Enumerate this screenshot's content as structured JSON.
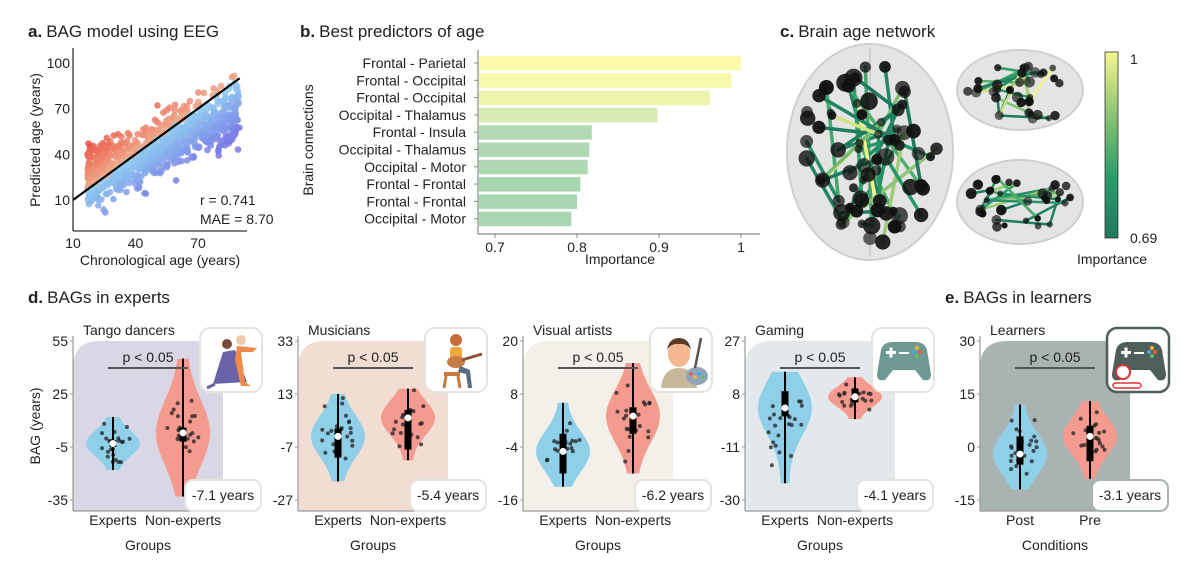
{
  "chart_data": [
    {
      "type": "scatter",
      "heading": {
        "letter": "a.",
        "title": "BAG model using EEG"
      },
      "xlabel": "Chronological age (years)",
      "ylabel": "Predicted age (years)",
      "xticks": [
        10,
        40,
        70
      ],
      "yticks": [
        10,
        40,
        70,
        100
      ],
      "xlim": [
        10,
        93
      ],
      "ylim": [
        -10,
        110
      ],
      "fit_line": {
        "x": [
          10,
          90
        ],
        "y": [
          10,
          90
        ]
      },
      "annotations": [
        "r = 0.741",
        "MAE = 8.70"
      ],
      "colors": {
        "over_near": "#efab8c",
        "over_far": "#e8473a",
        "under_near": "#90cff0",
        "under_far": "#7a7ce6"
      }
    },
    {
      "type": "bar",
      "orientation": "horizontal",
      "heading": {
        "letter": "b.",
        "title": "Best predictors of age"
      },
      "categories": [
        "Frontal - Parietal",
        "Frontal - Occipital",
        "Frontal - Occipital",
        "Occipital - Thalamus",
        "Frontal - Insula",
        "Occipital - Thalamus",
        "Occipital - Motor",
        "Frontal - Frontal",
        "Frontal - Frontal",
        "Occipital - Motor"
      ],
      "values": [
        1.0,
        0.988,
        0.962,
        0.898,
        0.818,
        0.815,
        0.813,
        0.804,
        0.8,
        0.793
      ],
      "xlabel": "Importance",
      "ylabel": "Brain connections",
      "xticks": [
        0.7,
        0.8,
        0.9,
        1
      ],
      "xlim": [
        0.68,
        1.02
      ]
    },
    {
      "type": "network",
      "heading": {
        "letter": "c.",
        "title": "Brain age network"
      },
      "colorbar": {
        "min": 0.69,
        "max": 1,
        "max_label": "1",
        "min_label": "0.69",
        "label": "Importance",
        "colors": [
          "#1d7a5f",
          "#2a9d6a",
          "#8cc473",
          "#f6f68e"
        ]
      }
    },
    {
      "type": "violin",
      "heading": {
        "letter": "d.",
        "title": "BAGs in experts"
      },
      "ylabel": "BAG (years)",
      "panels": [
        {
          "title": "Tango dancers",
          "icon": "tango-dancers-icon",
          "bg": "#d9d7e5",
          "yticks": [
            55,
            25,
            -5,
            -35
          ],
          "xlabel": "Groups",
          "p_label": "p < 0.05",
          "bag_diff": "-7.1 years",
          "groups": [
            {
              "name": "Experts",
              "min": -18,
              "q1": -5,
              "median": -3,
              "q3": -1,
              "max": 12,
              "color": "#8fd0e8"
            },
            {
              "name": "Non-experts",
              "min": -33,
              "q1": -2,
              "median": 3,
              "q3": 6,
              "max": 45,
              "color": "#f49a8e"
            }
          ]
        },
        {
          "title": "Musicians",
          "icon": "musician-guitar-icon",
          "bg": "#f1ddd2",
          "yticks": [
            33,
            13,
            -7,
            -27
          ],
          "xlabel": "Groups",
          "p_label": "p < 0.05",
          "bag_diff": "-5.4 years",
          "groups": [
            {
              "name": "Experts",
              "min": -20,
              "q1": -11,
              "median": -3,
              "q3": 0,
              "max": 13,
              "color": "#8fd0e8"
            },
            {
              "name": "Non-experts",
              "min": -12,
              "q1": -8,
              "median": 4,
              "q3": 7,
              "max": 15,
              "color": "#f49a8e"
            }
          ]
        },
        {
          "title": "Visual artists",
          "icon": "visual-artist-icon",
          "bg": "#f3f0ea",
          "yticks": [
            20,
            8,
            -4,
            -16
          ],
          "xlabel": "Groups",
          "p_label": "p < 0.05",
          "bag_diff": "-6.2 years",
          "groups": [
            {
              "name": "Experts",
              "min": -13,
              "q1": -10,
              "median": -5,
              "q3": -1,
              "max": 6,
              "color": "#8fd0e8"
            },
            {
              "name": "Non-experts",
              "min": -10,
              "q1": -1,
              "median": 3,
              "q3": 5,
              "max": 15,
              "color": "#f49a8e"
            }
          ]
        },
        {
          "title": "Gaming",
          "icon": "game-controller-icon",
          "bg": "#e3e9ea",
          "yticks": [
            27,
            8,
            -11,
            -30
          ],
          "xlabel": "Groups",
          "p_label": "p < 0.05",
          "bag_diff": "-4.1 years",
          "groups": [
            {
              "name": "Experts",
              "min": -24,
              "q1": 0,
              "median": 3,
              "q3": 9,
              "max": 16,
              "color": "#8fd0e8"
            },
            {
              "name": "Non-experts",
              "min": -1,
              "q1": 5,
              "median": 7,
              "q3": 10,
              "max": 14,
              "color": "#f49a8e"
            }
          ]
        }
      ]
    },
    {
      "type": "violin",
      "heading": {
        "letter": "e.",
        "title": "BAGs in learners"
      },
      "panels": [
        {
          "title": "Learners",
          "icon": "game-controller-timer-icon",
          "bg": "#a9b3b1",
          "yticks": [
            30,
            15,
            0,
            -15
          ],
          "xlabel": "Conditions",
          "p_label": "p < 0.05",
          "bag_diff": "-3.1 years",
          "groups": [
            {
              "name": "Post",
              "min": -12,
              "q1": -5,
              "median": -2,
              "q3": 3,
              "max": 12,
              "color": "#8fd0e8"
            },
            {
              "name": "Pre",
              "min": -9,
              "q1": -4,
              "median": 3,
              "q3": 6,
              "max": 13,
              "color": "#f49a8e"
            }
          ]
        }
      ]
    }
  ]
}
